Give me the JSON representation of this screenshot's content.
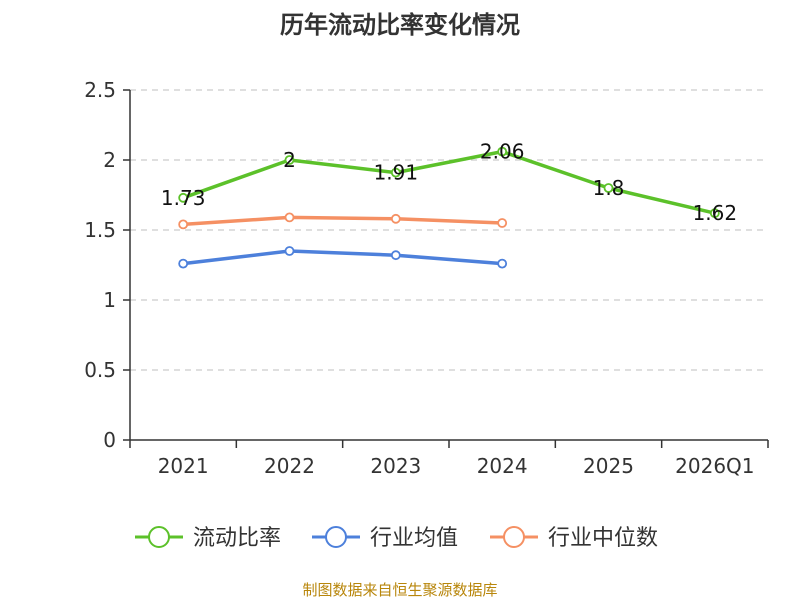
{
  "chart_data": {
    "type": "line",
    "title": "历年流动比率变化情况",
    "categories": [
      "2021",
      "2022",
      "2023",
      "2024",
      "2025",
      "2026Q1"
    ],
    "ylim": [
      0,
      2.5
    ],
    "yticks": [
      "0",
      "0.5",
      "1",
      "1.5",
      "2",
      "2.5"
    ],
    "grid": true,
    "legend_position": "bottom",
    "series": [
      {
        "name": "流动比率",
        "color": "#5cc12a",
        "values": [
          1.73,
          2.0,
          1.91,
          2.06,
          1.8,
          1.62
        ],
        "labels": [
          "1.73",
          "2",
          "1.91",
          "2.06",
          "1.8",
          "1.62"
        ]
      },
      {
        "name": "行业均值",
        "color": "#4d80db",
        "values": [
          1.26,
          1.35,
          1.32,
          1.26,
          null,
          null
        ]
      },
      {
        "name": "行业中位数",
        "color": "#f59063",
        "values": [
          1.54,
          1.59,
          1.58,
          1.55,
          null,
          null
        ]
      }
    ],
    "source": "制图数据来自恒生聚源数据库"
  }
}
